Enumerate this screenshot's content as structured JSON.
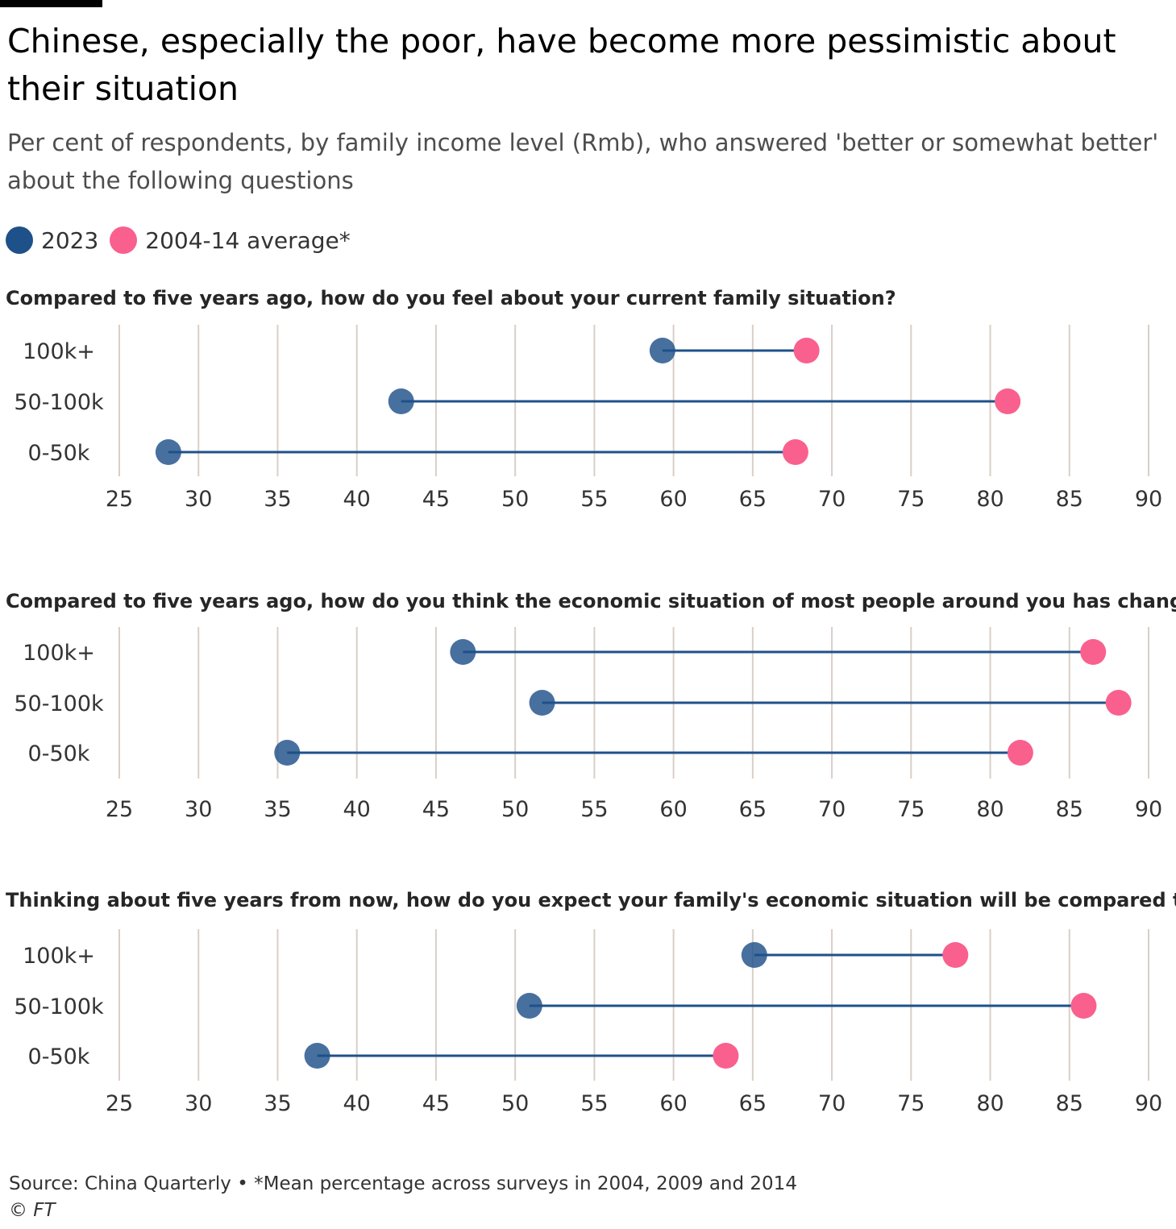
{
  "title": "Chinese, especially the poor, have become more pessimistic about their situation",
  "subtitle": "Per cent of respondents, by family income level (Rmb), who answered 'better or somewhat better' about the following questions",
  "legend": [
    {
      "label": "2023",
      "color": "#1e518a"
    },
    {
      "label": "2004-14 average*",
      "color": "#f9608e"
    }
  ],
  "source": "Source: China Quarterly • *Mean percentage across surveys in 2004, 2009 and 2014",
  "credit": "© FT",
  "chart_data": [
    {
      "type": "dumbbell",
      "title": "Compared to five years ago, how do you feel about your current family situation?",
      "categories": [
        "100k+",
        "50-100k",
        "0-50k"
      ],
      "series": [
        {
          "name": "2023",
          "values": [
            59.3,
            42.8,
            28.1
          ]
        },
        {
          "name": "2004-14 average*",
          "values": [
            68.4,
            81.1,
            67.7
          ]
        }
      ],
      "xlim": [
        25,
        90
      ],
      "xticks": [
        25,
        30,
        35,
        40,
        45,
        50,
        55,
        60,
        65,
        70,
        75,
        80,
        85,
        90
      ],
      "grid": true
    },
    {
      "type": "dumbbell",
      "title": "Compared to five years ago, how do you think the economic situation of most people around you has changed?",
      "categories": [
        "100k+",
        "50-100k",
        "0-50k"
      ],
      "series": [
        {
          "name": "2023",
          "values": [
            46.7,
            51.7,
            35.6
          ]
        },
        {
          "name": "2004-14 average*",
          "values": [
            86.5,
            88.1,
            81.9
          ]
        }
      ],
      "xlim": [
        25,
        90
      ],
      "xticks": [
        25,
        30,
        35,
        40,
        45,
        50,
        55,
        60,
        65,
        70,
        75,
        80,
        85,
        90
      ],
      "grid": true
    },
    {
      "type": "dumbbell",
      "title": "Thinking about five years from now, how do you expect your family's economic situation will be compared to now?",
      "categories": [
        "100k+",
        "50-100k",
        "0-50k"
      ],
      "series": [
        {
          "name": "2023",
          "values": [
            65.1,
            50.9,
            37.5
          ]
        },
        {
          "name": "2004-14 average*",
          "values": [
            77.8,
            85.9,
            63.3
          ]
        }
      ],
      "xlim": [
        25,
        90
      ],
      "xticks": [
        25,
        30,
        35,
        40,
        45,
        50,
        55,
        60,
        65,
        70,
        75,
        80,
        85,
        90
      ],
      "grid": true
    }
  ]
}
